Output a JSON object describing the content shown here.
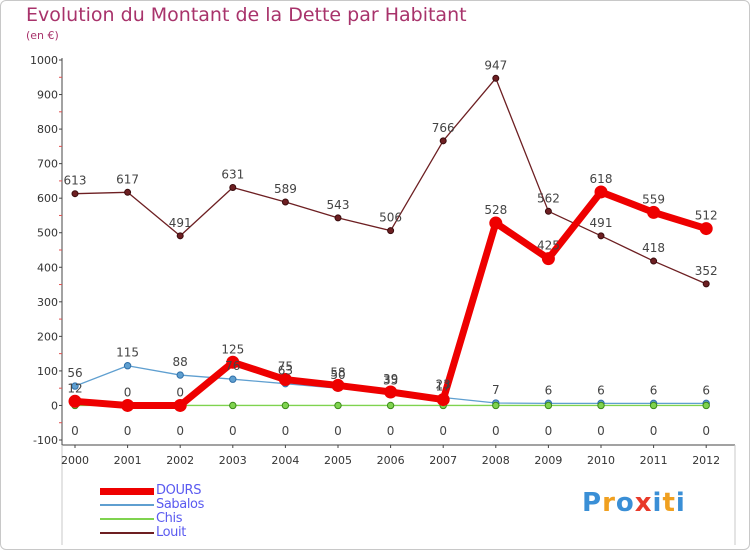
{
  "title": "Evolution du Montant de la Dette par Habitant",
  "subtitle": "(en €)",
  "logo": {
    "text": "Proxiti",
    "colors": [
      "#3a8fd6",
      "#f0a020",
      "#3a8fd6",
      "#e83a2a",
      "#3a8fd6",
      "#f0a020",
      "#3a8fd6"
    ]
  },
  "chart_data": {
    "type": "line",
    "categories": [
      "2000",
      "2001",
      "2002",
      "2003",
      "2004",
      "2005",
      "2006",
      "2007",
      "2008",
      "2009",
      "2010",
      "2011",
      "2012"
    ],
    "ylim": [
      -100,
      1000
    ],
    "yticks": [
      "-100",
      "0",
      "100",
      "200",
      "300",
      "400",
      "500",
      "600",
      "700",
      "800",
      "900",
      "1000"
    ],
    "grid": false,
    "legend_position": "bottom-left",
    "series": [
      {
        "name": "DOURS",
        "color": "#ee0000",
        "values": [
          12,
          0,
          0,
          125,
          75,
          58,
          39,
          17,
          528,
          425,
          618,
          559,
          512
        ],
        "labels": [
          "12",
          "0",
          "0",
          "125",
          "75",
          "58",
          "39",
          "17",
          "528",
          "425",
          "618",
          "559",
          "512"
        ]
      },
      {
        "name": "Sabalos",
        "color": "#5f9fd0",
        "values": [
          56,
          115,
          88,
          76,
          63,
          50,
          35,
          23,
          7,
          6,
          6,
          6,
          6
        ],
        "labels": [
          "56",
          "115",
          "88",
          "76",
          "63",
          "50",
          "35",
          "23",
          "7",
          "6",
          "6",
          "6",
          "6"
        ]
      },
      {
        "name": "Chis",
        "color": "#7fd34f",
        "values": [
          0,
          0,
          0,
          0,
          0,
          0,
          0,
          0,
          0,
          0,
          0,
          0,
          0
        ],
        "labels": [
          "0",
          "0",
          "0",
          "0",
          "0",
          "0",
          "0",
          "0",
          "0",
          "0",
          "0",
          "0",
          "0"
        ]
      },
      {
        "name": "Louit",
        "color": "#6d1f22",
        "values": [
          613,
          617,
          491,
          631,
          589,
          543,
          506,
          766,
          947,
          562,
          491,
          418,
          352
        ],
        "labels": [
          "613",
          "617",
          "491",
          "631",
          "589",
          "543",
          "506",
          "766",
          "947",
          "562",
          "491",
          "418",
          "352"
        ]
      }
    ]
  }
}
